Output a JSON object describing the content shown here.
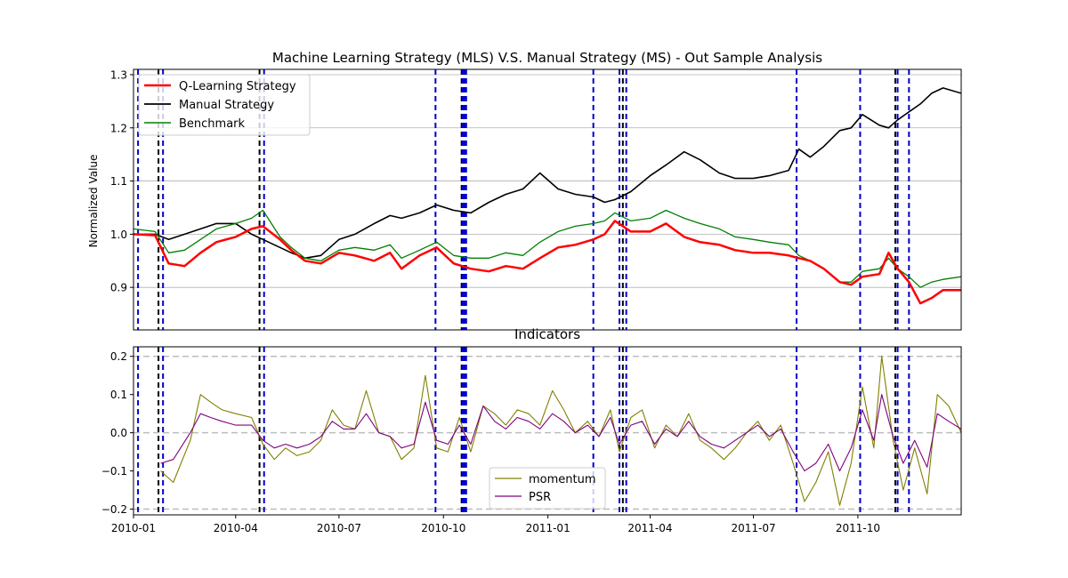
{
  "chart_data": [
    {
      "type": "line",
      "title": "Machine Learning Strategy (MLS) V.S. Manual Strategy (MS) - Out Sample Analysis",
      "ylabel": "Normalized Value",
      "xlim": [
        "2010-01-01",
        "2011-12-31"
      ],
      "ylim": [
        0.82,
        1.31
      ],
      "yticks": [
        "0.9",
        "1.0",
        "1.1",
        "1.2",
        "1.3"
      ],
      "grid": "horizontal",
      "legend": "top-left",
      "series": [
        {
          "name": "Q-Learning Strategy",
          "color": "#ff0000",
          "x": [
            "2010-01-01",
            "2010-01-20",
            "2010-02-01",
            "2010-02-15",
            "2010-03-01",
            "2010-03-15",
            "2010-04-01",
            "2010-04-15",
            "2010-04-25",
            "2010-05-10",
            "2010-05-20",
            "2010-06-01",
            "2010-06-15",
            "2010-07-01",
            "2010-07-15",
            "2010-08-01",
            "2010-08-15",
            "2010-08-25",
            "2010-09-10",
            "2010-09-25",
            "2010-10-10",
            "2010-10-25",
            "2010-11-10",
            "2010-11-25",
            "2010-12-10",
            "2010-12-25",
            "2011-01-10",
            "2011-01-25",
            "2011-02-10",
            "2011-02-20",
            "2011-03-01",
            "2011-03-15",
            "2011-04-01",
            "2011-04-15",
            "2011-05-01",
            "2011-05-15",
            "2011-06-01",
            "2011-06-15",
            "2011-07-01",
            "2011-07-15",
            "2011-08-01",
            "2011-08-10",
            "2011-08-20",
            "2011-09-01",
            "2011-09-15",
            "2011-09-25",
            "2011-10-05",
            "2011-10-20",
            "2011-10-28",
            "2011-11-05",
            "2011-11-15",
            "2011-11-25",
            "2011-12-05",
            "2011-12-15",
            "2011-12-31"
          ],
          "y": [
            1.0,
            0.998,
            0.945,
            0.94,
            0.965,
            0.985,
            0.995,
            1.01,
            1.015,
            0.99,
            0.97,
            0.95,
            0.945,
            0.965,
            0.96,
            0.95,
            0.965,
            0.935,
            0.96,
            0.975,
            0.945,
            0.935,
            0.93,
            0.94,
            0.935,
            0.955,
            0.975,
            0.98,
            0.99,
            1.0,
            1.025,
            1.005,
            1.005,
            1.02,
            0.995,
            0.985,
            0.98,
            0.97,
            0.965,
            0.965,
            0.96,
            0.955,
            0.95,
            0.935,
            0.91,
            0.905,
            0.92,
            0.925,
            0.965,
            0.935,
            0.91,
            0.87,
            0.88,
            0.895,
            0.895
          ]
        },
        {
          "name": "Manual Strategy",
          "color": "#000000",
          "x": [
            "2010-01-01",
            "2010-01-20",
            "2010-02-01",
            "2010-02-15",
            "2010-03-01",
            "2010-03-15",
            "2010-04-01",
            "2010-04-15",
            "2010-04-25",
            "2010-05-10",
            "2010-05-20",
            "2010-06-01",
            "2010-06-15",
            "2010-07-01",
            "2010-07-15",
            "2010-08-01",
            "2010-08-15",
            "2010-08-25",
            "2010-09-10",
            "2010-09-25",
            "2010-10-10",
            "2010-10-25",
            "2010-11-10",
            "2010-11-25",
            "2010-12-10",
            "2010-12-25",
            "2011-01-10",
            "2011-01-25",
            "2011-02-10",
            "2011-02-20",
            "2011-03-01",
            "2011-03-15",
            "2011-04-01",
            "2011-04-15",
            "2011-05-01",
            "2011-05-15",
            "2011-06-01",
            "2011-06-15",
            "2011-07-01",
            "2011-07-15",
            "2011-08-01",
            "2011-08-10",
            "2011-08-20",
            "2011-09-01",
            "2011-09-15",
            "2011-09-25",
            "2011-10-05",
            "2011-10-20",
            "2011-10-28",
            "2011-11-05",
            "2011-11-15",
            "2011-11-25",
            "2011-12-05",
            "2011-12-15",
            "2011-12-31"
          ],
          "y": [
            1.0,
            1.0,
            0.99,
            1.0,
            1.01,
            1.02,
            1.02,
            1.0,
            0.99,
            0.975,
            0.965,
            0.955,
            0.96,
            0.99,
            1.0,
            1.02,
            1.035,
            1.03,
            1.04,
            1.055,
            1.045,
            1.04,
            1.06,
            1.075,
            1.085,
            1.115,
            1.085,
            1.075,
            1.07,
            1.06,
            1.065,
            1.08,
            1.11,
            1.13,
            1.155,
            1.14,
            1.115,
            1.105,
            1.105,
            1.11,
            1.12,
            1.16,
            1.145,
            1.165,
            1.195,
            1.2,
            1.225,
            1.205,
            1.2,
            1.215,
            1.23,
            1.245,
            1.265,
            1.275,
            1.265
          ]
        },
        {
          "name": "Benchmark",
          "color": "#008000",
          "x": [
            "2010-01-01",
            "2010-01-20",
            "2010-02-01",
            "2010-02-15",
            "2010-03-01",
            "2010-03-15",
            "2010-04-01",
            "2010-04-15",
            "2010-04-25",
            "2010-05-10",
            "2010-05-20",
            "2010-06-01",
            "2010-06-15",
            "2010-07-01",
            "2010-07-15",
            "2010-08-01",
            "2010-08-15",
            "2010-08-25",
            "2010-09-10",
            "2010-09-25",
            "2010-10-10",
            "2010-10-25",
            "2010-11-10",
            "2010-11-25",
            "2010-12-10",
            "2010-12-25",
            "2011-01-10",
            "2011-01-25",
            "2011-02-10",
            "2011-02-20",
            "2011-03-01",
            "2011-03-15",
            "2011-04-01",
            "2011-04-15",
            "2011-05-01",
            "2011-05-15",
            "2011-06-01",
            "2011-06-15",
            "2011-07-01",
            "2011-07-15",
            "2011-08-01",
            "2011-08-10",
            "2011-08-20",
            "2011-09-01",
            "2011-09-15",
            "2011-09-25",
            "2011-10-05",
            "2011-10-20",
            "2011-10-28",
            "2011-11-05",
            "2011-11-15",
            "2011-11-25",
            "2011-12-05",
            "2011-12-15",
            "2011-12-31"
          ],
          "y": [
            1.01,
            1.005,
            0.965,
            0.97,
            0.99,
            1.01,
            1.02,
            1.03,
            1.045,
            0.995,
            0.975,
            0.955,
            0.95,
            0.97,
            0.975,
            0.97,
            0.98,
            0.955,
            0.97,
            0.985,
            0.96,
            0.955,
            0.955,
            0.965,
            0.96,
            0.985,
            1.005,
            1.015,
            1.02,
            1.025,
            1.04,
            1.025,
            1.03,
            1.045,
            1.03,
            1.02,
            1.01,
            0.995,
            0.99,
            0.985,
            0.98,
            0.96,
            0.95,
            0.935,
            0.91,
            0.91,
            0.93,
            0.935,
            0.955,
            0.935,
            0.92,
            0.9,
            0.91,
            0.915,
            0.92
          ]
        }
      ],
      "vlines": {
        "blue": [
          "2010-01-05",
          "2010-01-27",
          "2010-04-26",
          "2010-09-24",
          "2010-10-18",
          "2010-10-19",
          "2010-10-20",
          "2010-10-21",
          "2011-02-10",
          "2011-03-05",
          "2011-03-11",
          "2011-08-08",
          "2011-10-03",
          "2011-11-05",
          "2011-11-15"
        ],
        "black": [
          "2010-01-23",
          "2010-04-22",
          "2010-10-17",
          "2011-03-08",
          "2011-11-03"
        ]
      }
    },
    {
      "type": "line",
      "title": "Indicators",
      "xlim": [
        "2010-01-01",
        "2011-12-31"
      ],
      "ylim": [
        -0.215,
        0.225
      ],
      "yticks": [
        "0.2",
        "0.1",
        "0.0",
        "−0.1",
        "−0.2"
      ],
      "xticks": [
        "2010-01",
        "2010-04",
        "2010-07",
        "2010-10",
        "2011-01",
        "2011-04",
        "2011-07",
        "2011-10"
      ],
      "hlines": [
        0.2,
        0.0,
        -0.2
      ],
      "legend": "bottom-center",
      "series": [
        {
          "name": "momentum",
          "color": "#808000",
          "x": [
            "2010-01-25",
            "2010-02-05",
            "2010-02-20",
            "2010-03-01",
            "2010-03-10",
            "2010-03-20",
            "2010-04-01",
            "2010-04-15",
            "2010-04-25",
            "2010-05-05",
            "2010-05-15",
            "2010-05-25",
            "2010-06-05",
            "2010-06-15",
            "2010-06-25",
            "2010-07-05",
            "2010-07-15",
            "2010-07-25",
            "2010-08-05",
            "2010-08-15",
            "2010-08-25",
            "2010-09-05",
            "2010-09-15",
            "2010-09-25",
            "2010-10-05",
            "2010-10-15",
            "2010-10-25",
            "2010-11-05",
            "2010-11-15",
            "2010-11-25",
            "2010-12-05",
            "2010-12-15",
            "2010-12-25",
            "2011-01-05",
            "2011-01-15",
            "2011-01-25",
            "2011-02-05",
            "2011-02-15",
            "2011-02-25",
            "2011-03-05",
            "2011-03-15",
            "2011-03-25",
            "2011-04-05",
            "2011-04-15",
            "2011-04-25",
            "2011-05-05",
            "2011-05-15",
            "2011-05-25",
            "2011-06-05",
            "2011-06-15",
            "2011-06-25",
            "2011-07-05",
            "2011-07-15",
            "2011-07-25",
            "2011-08-05",
            "2011-08-15",
            "2011-08-25",
            "2011-09-05",
            "2011-09-15",
            "2011-09-25",
            "2011-10-05",
            "2011-10-15",
            "2011-10-22",
            "2011-11-01",
            "2011-11-10",
            "2011-11-20",
            "2011-12-01",
            "2011-12-10",
            "2011-12-20",
            "2011-12-31"
          ],
          "y": [
            -0.1,
            -0.13,
            -0.02,
            0.1,
            0.08,
            0.06,
            0.05,
            0.04,
            -0.03,
            -0.07,
            -0.04,
            -0.06,
            -0.05,
            -0.02,
            0.06,
            0.02,
            0.01,
            0.11,
            0.0,
            -0.01,
            -0.07,
            -0.04,
            0.15,
            -0.04,
            -0.05,
            0.04,
            -0.05,
            0.07,
            0.05,
            0.02,
            0.06,
            0.05,
            0.02,
            0.11,
            0.06,
            0.0,
            0.03,
            -0.01,
            0.06,
            -0.05,
            0.04,
            0.06,
            -0.04,
            0.02,
            -0.01,
            0.05,
            -0.02,
            -0.04,
            -0.07,
            -0.04,
            0.0,
            0.03,
            -0.02,
            0.02,
            -0.08,
            -0.18,
            -0.13,
            -0.05,
            -0.19,
            -0.08,
            0.12,
            -0.04,
            0.2,
            -0.02,
            -0.15,
            -0.04,
            -0.16,
            0.1,
            0.07,
            0.0
          ]
        },
        {
          "name": "PSR",
          "color": "#800080",
          "x": [
            "2010-01-25",
            "2010-02-05",
            "2010-02-20",
            "2010-03-01",
            "2010-03-10",
            "2010-03-20",
            "2010-04-01",
            "2010-04-15",
            "2010-04-25",
            "2010-05-05",
            "2010-05-15",
            "2010-05-25",
            "2010-06-05",
            "2010-06-15",
            "2010-06-25",
            "2010-07-05",
            "2010-07-15",
            "2010-07-25",
            "2010-08-05",
            "2010-08-15",
            "2010-08-25",
            "2010-09-05",
            "2010-09-15",
            "2010-09-25",
            "2010-10-05",
            "2010-10-15",
            "2010-10-25",
            "2010-11-05",
            "2010-11-15",
            "2010-11-25",
            "2010-12-05",
            "2010-12-15",
            "2010-12-25",
            "2011-01-05",
            "2011-01-15",
            "2011-01-25",
            "2011-02-05",
            "2011-02-15",
            "2011-02-25",
            "2011-03-05",
            "2011-03-15",
            "2011-03-25",
            "2011-04-05",
            "2011-04-15",
            "2011-04-25",
            "2011-05-05",
            "2011-05-15",
            "2011-05-25",
            "2011-06-05",
            "2011-06-15",
            "2011-06-25",
            "2011-07-05",
            "2011-07-15",
            "2011-07-25",
            "2011-08-05",
            "2011-08-15",
            "2011-08-25",
            "2011-09-05",
            "2011-09-15",
            "2011-09-25",
            "2011-10-05",
            "2011-10-15",
            "2011-10-22",
            "2011-11-01",
            "2011-11-10",
            "2011-11-20",
            "2011-12-01",
            "2011-12-10",
            "2011-12-20",
            "2011-12-31"
          ],
          "y": [
            -0.08,
            -0.07,
            0.0,
            0.05,
            0.04,
            0.03,
            0.02,
            0.02,
            -0.02,
            -0.04,
            -0.03,
            -0.04,
            -0.03,
            -0.01,
            0.03,
            0.01,
            0.01,
            0.05,
            0.0,
            -0.01,
            -0.04,
            -0.03,
            0.08,
            -0.02,
            -0.03,
            0.02,
            -0.03,
            0.07,
            0.03,
            0.01,
            0.04,
            0.03,
            0.01,
            0.05,
            0.03,
            0.0,
            0.02,
            -0.01,
            0.04,
            -0.03,
            0.02,
            0.03,
            -0.03,
            0.01,
            -0.01,
            0.03,
            -0.01,
            -0.03,
            -0.04,
            -0.02,
            0.0,
            0.02,
            -0.01,
            0.01,
            -0.05,
            -0.1,
            -0.08,
            -0.03,
            -0.1,
            -0.04,
            0.06,
            -0.02,
            0.1,
            -0.01,
            -0.08,
            -0.02,
            -0.09,
            0.05,
            0.03,
            0.01
          ]
        }
      ],
      "vlines": {
        "blue": [
          "2010-01-05",
          "2010-01-27",
          "2010-04-26",
          "2010-09-24",
          "2010-10-18",
          "2010-10-19",
          "2010-10-20",
          "2010-10-21",
          "2011-02-10",
          "2011-03-05",
          "2011-03-11",
          "2011-08-08",
          "2011-10-03",
          "2011-11-05",
          "2011-11-15"
        ],
        "black": [
          "2010-01-23",
          "2010-04-22",
          "2010-10-17",
          "2011-03-08",
          "2011-11-03"
        ]
      }
    }
  ]
}
